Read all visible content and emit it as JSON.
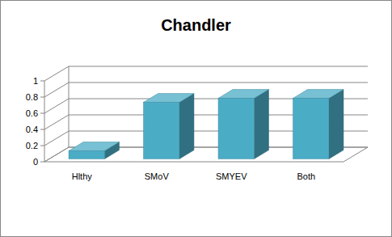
{
  "chart_data": {
    "type": "bar",
    "title": "Chandler",
    "categories": [
      "Hlthy",
      "SMoV",
      "SMYEV",
      "Both"
    ],
    "values": [
      0.1,
      0.7,
      0.75,
      0.75
    ],
    "color": "#4bacc6",
    "ylim": [
      0,
      1
    ],
    "yticks": [
      0,
      0.2,
      0.4,
      0.6,
      0.8,
      1
    ],
    "grid": true
  }
}
